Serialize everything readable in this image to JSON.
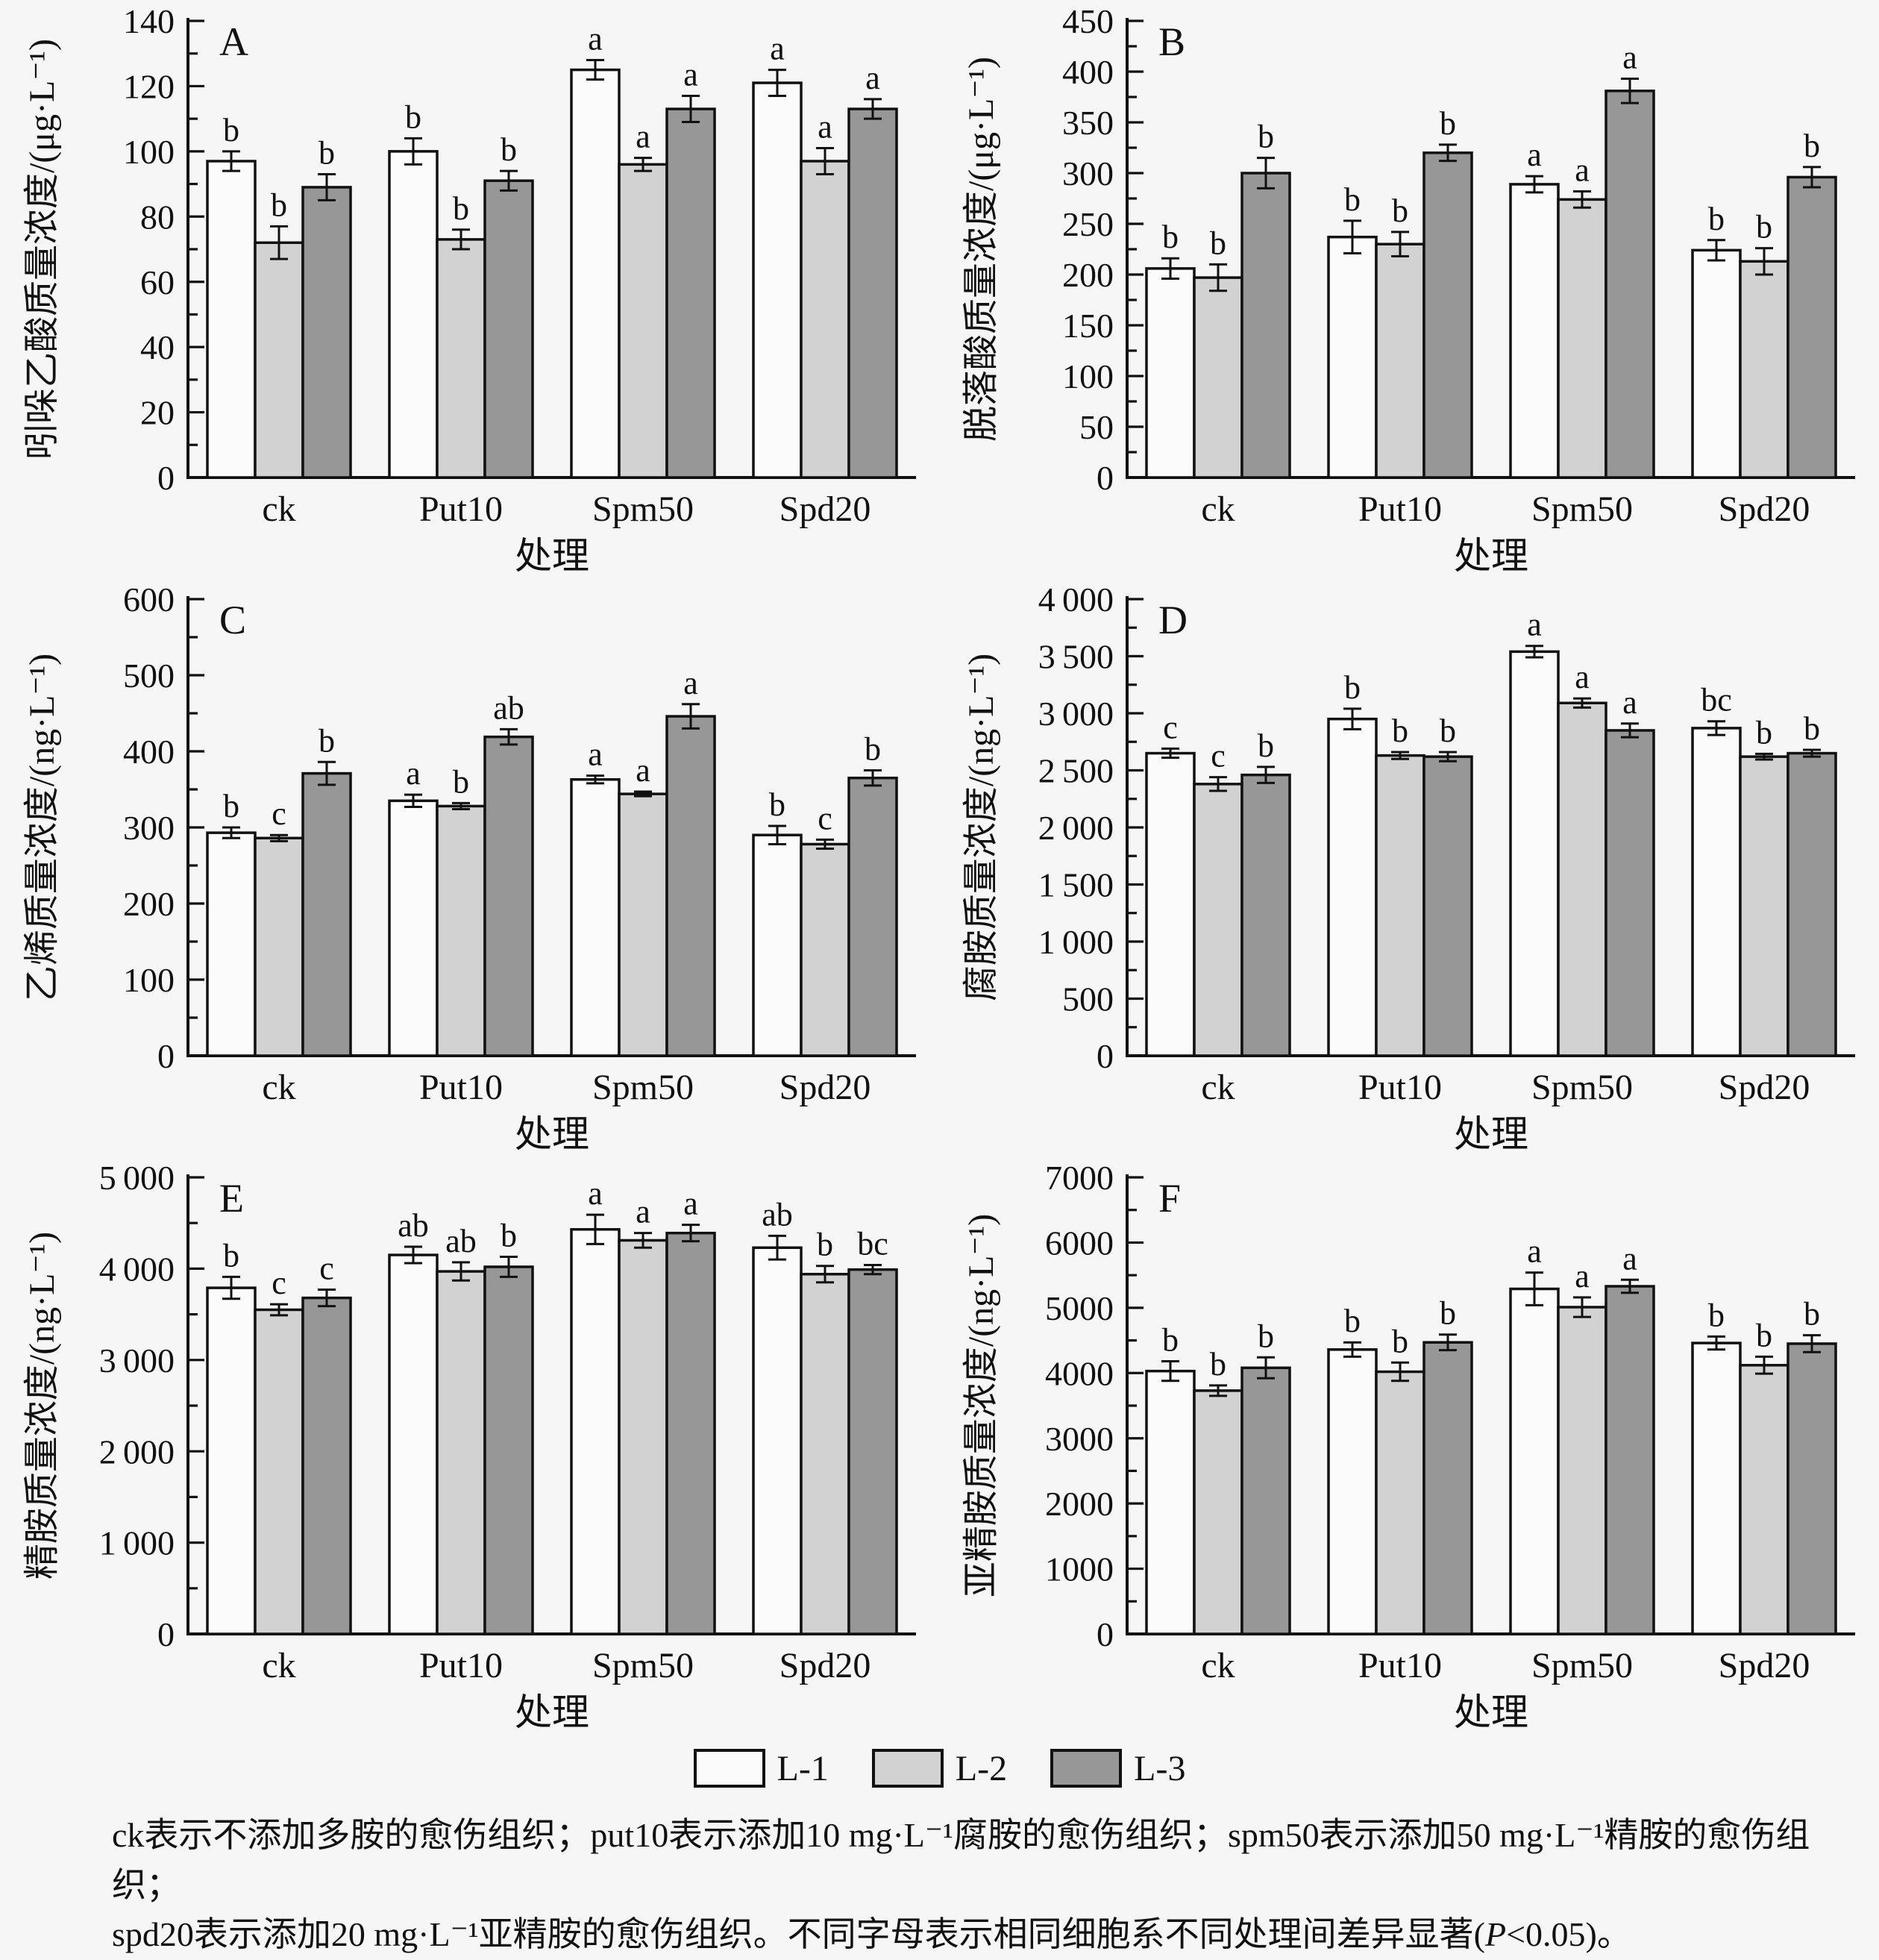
{
  "legend": {
    "items": [
      {
        "label": "L-1",
        "color": "#fbfbfb"
      },
      {
        "label": "L-2",
        "color": "#d2d2d2"
      },
      {
        "label": "L-3",
        "color": "#979797"
      }
    ]
  },
  "footer": {
    "line1": "ck表示不添加多胺的愈伤组织；put10表示添加10 mg·L⁻¹腐胺的愈伤组织；spm50表示添加50 mg·L⁻¹精胺的愈伤组织；",
    "line2_pre": "spd20表示添加20 mg·L⁻¹亚精胺的愈伤组织。不同字母表示相同细胞系不同处理间差异显著(",
    "line2_p": "P",
    "line2_post": "<0.05)。"
  },
  "chart_data": [
    {
      "type": "bar",
      "title": "A",
      "ylabel": "吲哚乙酸质量浓度/(μg·L⁻¹)",
      "xlabel": "处理",
      "categories": [
        "ck",
        "Put10",
        "Spm50",
        "Spd20"
      ],
      "ylim": [
        0,
        140
      ],
      "ytick_step": 20,
      "thousands_space": false,
      "grid": false,
      "legend_position": "bottom-shared",
      "series": [
        {
          "name": "L-1",
          "values": [
            97,
            100,
            125,
            121
          ],
          "errors": [
            3,
            4,
            3,
            4
          ],
          "letters": [
            "b",
            "b",
            "a",
            "a"
          ]
        },
        {
          "name": "L-2",
          "values": [
            72,
            73,
            96,
            97
          ],
          "errors": [
            5,
            3,
            2,
            4
          ],
          "letters": [
            "b",
            "b",
            "a",
            "a"
          ]
        },
        {
          "name": "L-3",
          "values": [
            89,
            91,
            113,
            113
          ],
          "errors": [
            4,
            3,
            4,
            3
          ],
          "letters": [
            "b",
            "b",
            "a",
            "a"
          ]
        }
      ]
    },
    {
      "type": "bar",
      "title": "B",
      "ylabel": "脱落酸质量浓度/(μg·L⁻¹)",
      "xlabel": "处理",
      "categories": [
        "ck",
        "Put10",
        "Spm50",
        "Spd20"
      ],
      "ylim": [
        0,
        450
      ],
      "ytick_step": 50,
      "thousands_space": false,
      "grid": false,
      "legend_position": "bottom-shared",
      "series": [
        {
          "name": "L-1",
          "values": [
            206,
            237,
            289,
            224
          ],
          "errors": [
            10,
            16,
            8,
            10
          ],
          "letters": [
            "b",
            "b",
            "a",
            "b"
          ]
        },
        {
          "name": "L-2",
          "values": [
            197,
            230,
            274,
            213
          ],
          "errors": [
            13,
            12,
            8,
            13
          ],
          "letters": [
            "b",
            "b",
            "a",
            "b"
          ]
        },
        {
          "name": "L-3",
          "values": [
            300,
            320,
            381,
            296
          ],
          "errors": [
            15,
            8,
            12,
            10
          ],
          "letters": [
            "b",
            "b",
            "a",
            "b"
          ]
        }
      ]
    },
    {
      "type": "bar",
      "title": "C",
      "ylabel": "乙烯质量浓度/(ng·L⁻¹)",
      "xlabel": "处理",
      "categories": [
        "ck",
        "Put10",
        "Spm50",
        "Spd20"
      ],
      "ylim": [
        0,
        600
      ],
      "ytick_step": 100,
      "thousands_space": false,
      "grid": false,
      "legend_position": "bottom-shared",
      "series": [
        {
          "name": "L-1",
          "values": [
            293,
            335,
            363,
            290
          ],
          "errors": [
            7,
            8,
            5,
            12
          ],
          "letters": [
            "b",
            "a",
            "a",
            "b"
          ]
        },
        {
          "name": "L-2",
          "values": [
            286,
            328,
            344,
            278
          ],
          "errors": [
            4,
            4,
            3,
            6
          ],
          "letters": [
            "c",
            "b",
            "a",
            "c"
          ]
        },
        {
          "name": "L-3",
          "values": [
            371,
            419,
            446,
            365
          ],
          "errors": [
            15,
            10,
            16,
            10
          ],
          "letters": [
            "b",
            "ab",
            "a",
            "b"
          ]
        }
      ]
    },
    {
      "type": "bar",
      "title": "D",
      "ylabel": "腐胺质量浓度/(ng·L⁻¹)",
      "xlabel": "处理",
      "categories": [
        "ck",
        "Put10",
        "Spm50",
        "Spd20"
      ],
      "ylim": [
        0,
        4000
      ],
      "ytick_step": 500,
      "thousands_space": true,
      "grid": false,
      "legend_position": "bottom-shared",
      "series": [
        {
          "name": "L-1",
          "values": [
            2650,
            2950,
            3540,
            2870
          ],
          "errors": [
            40,
            90,
            50,
            60
          ],
          "letters": [
            "c",
            "b",
            "a",
            "bc"
          ]
        },
        {
          "name": "L-2",
          "values": [
            2380,
            2630,
            3090,
            2620
          ],
          "errors": [
            60,
            30,
            40,
            25
          ],
          "letters": [
            "c",
            "b",
            "a",
            "b"
          ]
        },
        {
          "name": "L-3",
          "values": [
            2460,
            2620,
            2850,
            2650
          ],
          "errors": [
            70,
            40,
            60,
            30
          ],
          "letters": [
            "b",
            "b",
            "a",
            "b"
          ]
        }
      ]
    },
    {
      "type": "bar",
      "title": "E",
      "ylabel": "精胺质量浓度/(ng·L⁻¹)",
      "xlabel": "处理",
      "categories": [
        "ck",
        "Put10",
        "Spm50",
        "Spd20"
      ],
      "ylim": [
        0,
        5000
      ],
      "ytick_step": 1000,
      "thousands_space": true,
      "grid": false,
      "legend_position": "bottom-shared",
      "series": [
        {
          "name": "L-1",
          "values": [
            3790,
            4150,
            4430,
            4230
          ],
          "errors": [
            120,
            90,
            160,
            130
          ],
          "letters": [
            "b",
            "ab",
            "a",
            "ab"
          ]
        },
        {
          "name": "L-2",
          "values": [
            3550,
            3970,
            4310,
            3940
          ],
          "errors": [
            60,
            100,
            80,
            90
          ],
          "letters": [
            "c",
            "ab",
            "a",
            "b"
          ]
        },
        {
          "name": "L-3",
          "values": [
            3680,
            4020,
            4390,
            3990
          ],
          "errors": [
            90,
            110,
            90,
            50
          ],
          "letters": [
            "c",
            "b",
            "a",
            "bc"
          ]
        }
      ]
    },
    {
      "type": "bar",
      "title": "F",
      "ylabel": "亚精胺质量浓度/(ng·L⁻¹)",
      "xlabel": "处理",
      "categories": [
        "ck",
        "Put10",
        "Spm50",
        "Spd20"
      ],
      "ylim": [
        0,
        7000
      ],
      "ytick_step": 1000,
      "thousands_space": false,
      "grid": false,
      "legend_position": "bottom-shared",
      "series": [
        {
          "name": "L-1",
          "values": [
            4030,
            4360,
            5290,
            4460
          ],
          "errors": [
            150,
            110,
            250,
            100
          ],
          "letters": [
            "b",
            "b",
            "a",
            "b"
          ]
        },
        {
          "name": "L-2",
          "values": [
            3730,
            4020,
            5010,
            4120
          ],
          "errors": [
            80,
            140,
            150,
            130
          ],
          "letters": [
            "b",
            "b",
            "a",
            "b"
          ]
        },
        {
          "name": "L-3",
          "values": [
            4080,
            4470,
            5330,
            4450
          ],
          "errors": [
            160,
            120,
            100,
            130
          ],
          "letters": [
            "b",
            "b",
            "a",
            "b"
          ]
        }
      ]
    }
  ]
}
